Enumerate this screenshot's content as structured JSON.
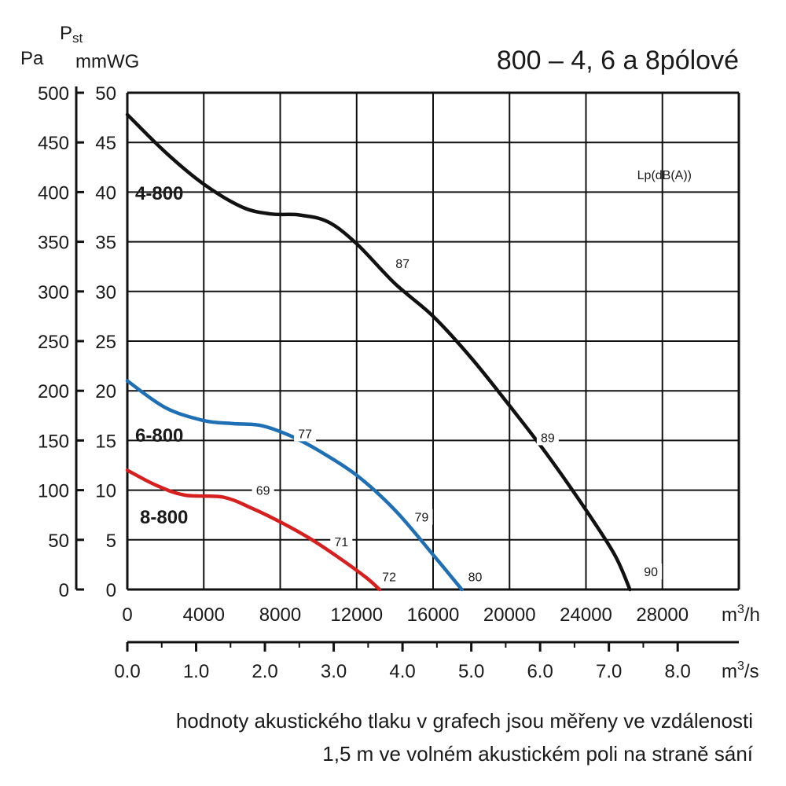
{
  "chart_data": {
    "type": "line",
    "title": "800 – 4, 6 a 8pólové",
    "ylabel_left_top": "Pst",
    "ylabel_pa": "Pa",
    "ylabel_mm": "mmWG",
    "xlabel_m3h": "m3/h",
    "xlabel_m3s": "m3/s",
    "lp_label": "Lp(dB(A))",
    "ylim_pa": [
      0,
      500
    ],
    "ylim_mm": [
      0,
      50
    ],
    "xlim_m3h": [
      0,
      32000
    ],
    "y_ticks_pa": [
      "0",
      "50",
      "100",
      "150",
      "200",
      "250",
      "300",
      "350",
      "400",
      "450",
      "500"
    ],
    "y_ticks_mm": [
      "0",
      "5",
      "10",
      "15",
      "20",
      "25",
      "30",
      "35",
      "40",
      "45",
      "50"
    ],
    "x_ticks_m3h": [
      "0",
      "4000",
      "8000",
      "12000",
      "16000",
      "20000",
      "24000",
      "28000"
    ],
    "x_ticks_m3s": [
      "0.0",
      "1.0",
      "2.0",
      "3.0",
      "4.0",
      "5.0",
      "6.0",
      "7.0",
      "8.0"
    ],
    "grid": true,
    "series": [
      {
        "name": "4-800",
        "color": "#111111",
        "x": [
          0,
          2000,
          4000,
          6000,
          7500,
          9000,
          10500,
          12000,
          14000,
          16000,
          18000,
          20000,
          22000,
          24000,
          25500,
          26300
        ],
        "y": [
          478,
          440,
          408,
          385,
          378,
          377,
          370,
          348,
          308,
          275,
          233,
          185,
          135,
          80,
          35,
          0
        ],
        "dB": [
          {
            "value": "87",
            "x": 14400,
            "y": 325
          },
          {
            "value": "89",
            "x": 22000,
            "y": 150
          },
          {
            "value": "90",
            "x": 27400,
            "y": 15
          }
        ]
      },
      {
        "name": "6-800",
        "color": "#1f6fb5",
        "x": [
          0,
          2000,
          4000,
          5500,
          7000,
          8500,
          10000,
          12000,
          14000,
          16000,
          17500
        ],
        "y": [
          210,
          183,
          170,
          167,
          165,
          155,
          140,
          115,
          80,
          35,
          0
        ],
        "dB": [
          {
            "value": "77",
            "x": 9300,
            "y": 154
          },
          {
            "value": "79",
            "x": 15400,
            "y": 70
          },
          {
            "value": "80",
            "x": 18200,
            "y": 10
          }
        ]
      },
      {
        "name": "8-800",
        "color": "#d62020",
        "x": [
          0,
          1500,
          3000,
          5000,
          6500,
          8000,
          9500,
          11000,
          12500,
          13200
        ],
        "y": [
          120,
          105,
          95,
          93,
          82,
          68,
          52,
          33,
          12,
          0
        ],
        "dB": [
          {
            "value": "69",
            "x": 7100,
            "y": 97
          },
          {
            "value": "71",
            "x": 11200,
            "y": 45
          },
          {
            "value": "72",
            "x": 13700,
            "y": 10
          }
        ]
      }
    ]
  },
  "note": {
    "line1": "hodnoty akustického tlaku v grafech jsou měřeny ve vzdálenosti",
    "line2": "1,5 m ve volném akustickém poli na straně sání"
  }
}
